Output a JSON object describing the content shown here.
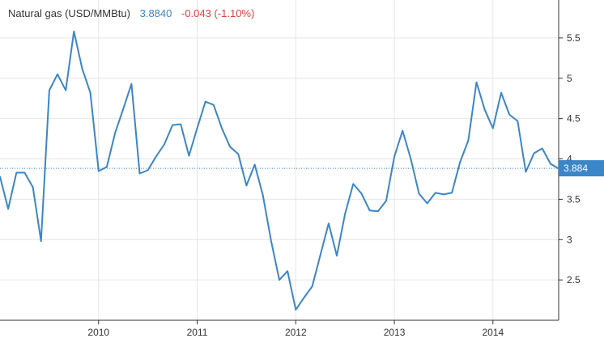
{
  "header": {
    "title": "Natural gas (USD/MMBtu)",
    "price": "3.8840",
    "change": "-0.043 (-1.10%)"
  },
  "colors": {
    "line": "#3a86c8",
    "badge": "#3a86c8",
    "change_negative": "#e2403b",
    "grid": "#e6e6e6",
    "axis": "#333333",
    "text": "#333333"
  },
  "chart_data": {
    "type": "line",
    "title": "Natural gas (USD/MMBtu)",
    "xlabel": "",
    "ylabel": "",
    "x_ticks": [
      "2010",
      "2011",
      "2012",
      "2013",
      "2014"
    ],
    "y_ticks": [
      "2.5",
      "3",
      "3.5",
      "4",
      "4.5",
      "5",
      "5.5"
    ],
    "ylim": [
      2.0,
      5.97
    ],
    "xlim": [
      "2009-01",
      "2014-09"
    ],
    "grid": true,
    "y_axis_side": "right",
    "current_value": 3.884,
    "current_value_label": "3.884",
    "series": [
      {
        "name": "Natural gas",
        "x": [
          "2009-01",
          "2009-02",
          "2009-03",
          "2009-04",
          "2009-05",
          "2009-06",
          "2009-07",
          "2009-08",
          "2009-09",
          "2009-10",
          "2009-11",
          "2009-12",
          "2010-01",
          "2010-02",
          "2010-03",
          "2010-04",
          "2010-05",
          "2010-06",
          "2010-07",
          "2010-08",
          "2010-09",
          "2010-10",
          "2010-11",
          "2010-12",
          "2011-01",
          "2011-02",
          "2011-03",
          "2011-04",
          "2011-05",
          "2011-06",
          "2011-07",
          "2011-08",
          "2011-09",
          "2011-10",
          "2011-11",
          "2011-12",
          "2012-01",
          "2012-02",
          "2012-03",
          "2012-04",
          "2012-05",
          "2012-06",
          "2012-07",
          "2012-08",
          "2012-09",
          "2012-10",
          "2012-11",
          "2012-12",
          "2013-01",
          "2013-02",
          "2013-03",
          "2013-04",
          "2013-05",
          "2013-06",
          "2013-07",
          "2013-08",
          "2013-09",
          "2013-10",
          "2013-11",
          "2013-12",
          "2014-01",
          "2014-02",
          "2014-03",
          "2014-04",
          "2014-05",
          "2014-06",
          "2014-07",
          "2014-08",
          "2014-09"
        ],
        "values": [
          3.78,
          3.38,
          3.83,
          3.83,
          3.65,
          2.98,
          4.85,
          5.05,
          4.85,
          5.58,
          5.12,
          4.82,
          3.85,
          3.9,
          4.32,
          4.62,
          4.93,
          3.82,
          3.86,
          4.03,
          4.18,
          4.42,
          4.43,
          4.04,
          4.38,
          4.71,
          4.67,
          4.38,
          4.15,
          4.06,
          3.67,
          3.93,
          3.55,
          2.98,
          2.5,
          2.61,
          2.13,
          2.28,
          2.42,
          2.81,
          3.2,
          2.8,
          3.32,
          3.69,
          3.57,
          3.36,
          3.35,
          3.48,
          4.03,
          4.35,
          4.0,
          3.57,
          3.45,
          3.58,
          3.56,
          3.58,
          3.96,
          4.23,
          4.95,
          4.61,
          4.38,
          4.82,
          4.55,
          4.47,
          3.84,
          4.07,
          4.13,
          3.94,
          3.88
        ]
      }
    ]
  }
}
